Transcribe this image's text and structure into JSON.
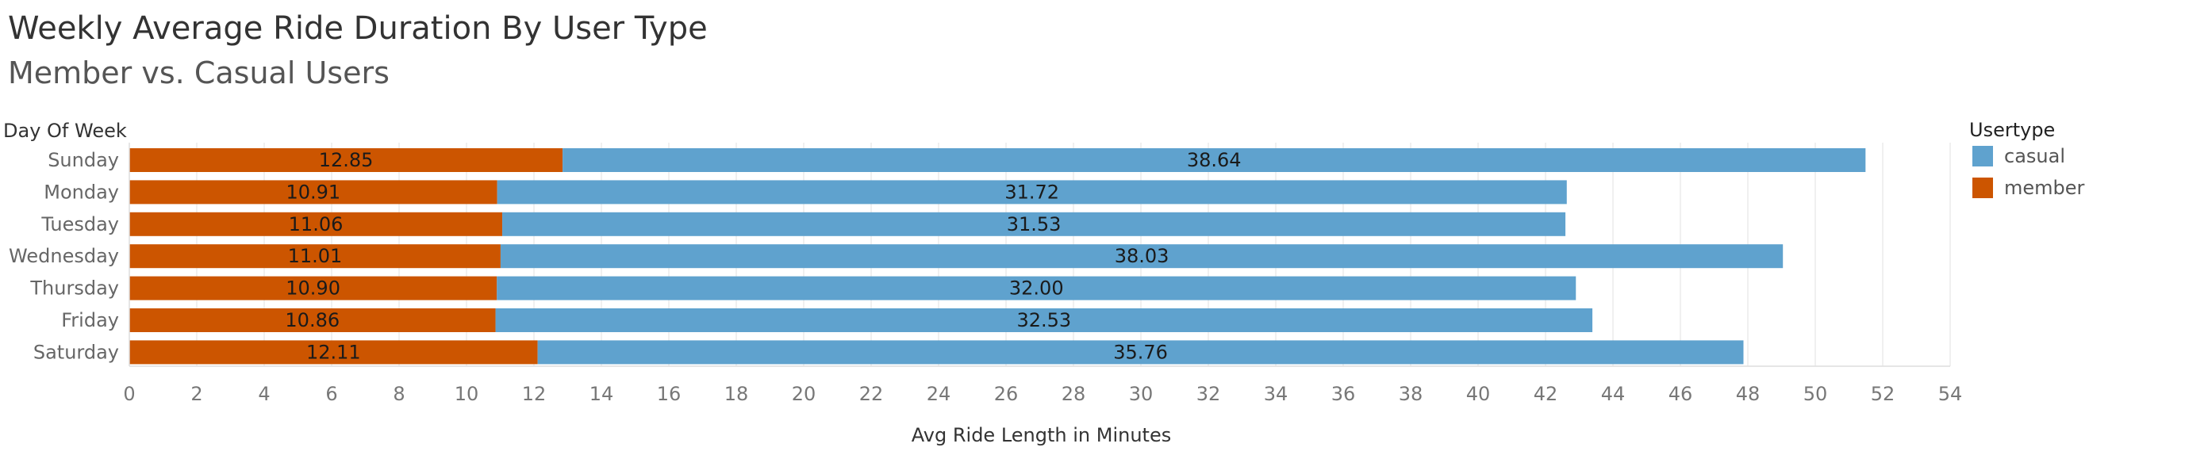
{
  "header": {
    "title": "Weekly Average Ride Duration By User Type",
    "subtitle": "Member vs.  Casual Users"
  },
  "chart_data": {
    "type": "bar",
    "orientation": "horizontal",
    "stacked": true,
    "title": "Weekly Average Ride Duration By User Type",
    "subtitle": "Member vs.  Casual Users",
    "ylabel": "Day Of Week",
    "xlabel": "Avg Ride Length in Minutes",
    "categories": [
      "Sunday",
      "Monday",
      "Tuesday",
      "Wednesday",
      "Thursday",
      "Friday",
      "Saturday"
    ],
    "series": [
      {
        "name": "member",
        "color": "#cc5500",
        "values": [
          12.85,
          10.91,
          11.06,
          11.01,
          10.9,
          10.86,
          12.11
        ]
      },
      {
        "name": "casual",
        "color": "#5fa2ce",
        "values": [
          38.64,
          31.72,
          31.53,
          38.03,
          32.0,
          32.53,
          35.76
        ]
      }
    ],
    "value_labels": [
      [
        "12.85",
        "10.91",
        "11.06",
        "11.01",
        "10.90",
        "10.86",
        "12.11"
      ],
      [
        "38.64",
        "31.72",
        "31.53",
        "38.03",
        "32.00",
        "32.53",
        "35.76"
      ]
    ],
    "xlim": [
      0,
      54
    ],
    "xticks": [
      "0",
      "2",
      "4",
      "6",
      "8",
      "10",
      "12",
      "14",
      "16",
      "18",
      "20",
      "22",
      "24",
      "26",
      "28",
      "30",
      "32",
      "34",
      "36",
      "38",
      "40",
      "42",
      "44",
      "46",
      "48",
      "50",
      "52",
      "54"
    ],
    "grid": true,
    "legend": {
      "title": "Usertype",
      "position": "right",
      "entries": [
        {
          "label": "casual",
          "color": "#5fa2ce"
        },
        {
          "label": "member",
          "color": "#cc5500"
        }
      ]
    }
  }
}
